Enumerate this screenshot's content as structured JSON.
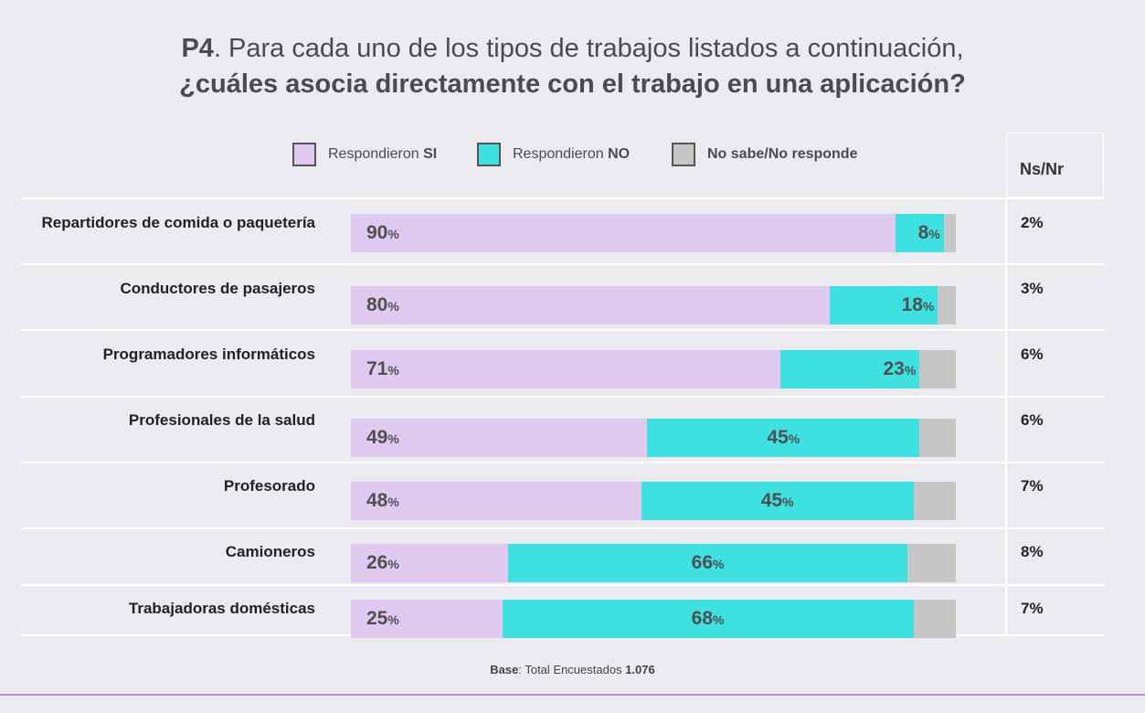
{
  "title": {
    "code": "P4",
    "line1": ". Para cada uno de los tipos de trabajos listados a continuación,",
    "line2": "¿cuáles asocia directamente con el trabajo en una aplicación?"
  },
  "legend": {
    "si": {
      "prefix": "Respondieron ",
      "strong": "SI",
      "color": "#dfc9ef"
    },
    "no": {
      "prefix": "Respondieron ",
      "strong": "NO",
      "color": "#3de2e0"
    },
    "nsnr": {
      "strong": "No sabe/No responde",
      "color": "#c6c6c6"
    }
  },
  "nsnr_header": "Ns/Nr",
  "footer": {
    "label": "Base",
    "text": ": Total Encuestados ",
    "value": "1.076"
  },
  "chart_data": {
    "type": "bar",
    "orientation": "horizontal",
    "stacked": true,
    "xlim": [
      0,
      100
    ],
    "unit": "%",
    "categories": [
      "Repartidores de comida o paquetería",
      "Conductores de pasajeros",
      "Programadores informáticos",
      "Profesionales de la salud",
      "Profesorado",
      "Camioneros",
      "Trabajadoras domésticas"
    ],
    "series": [
      {
        "name": "Respondieron SI",
        "values": [
          90,
          80,
          71,
          49,
          48,
          26,
          25
        ]
      },
      {
        "name": "Respondieron NO",
        "values": [
          8,
          18,
          23,
          45,
          45,
          66,
          68
        ]
      },
      {
        "name": "No sabe/No responde",
        "values": [
          2,
          3,
          6,
          6,
          7,
          8,
          7
        ]
      }
    ],
    "nsnr_labels": [
      "2%",
      "3%",
      "6%",
      "6%",
      "7%",
      "8%",
      "7%"
    ]
  }
}
